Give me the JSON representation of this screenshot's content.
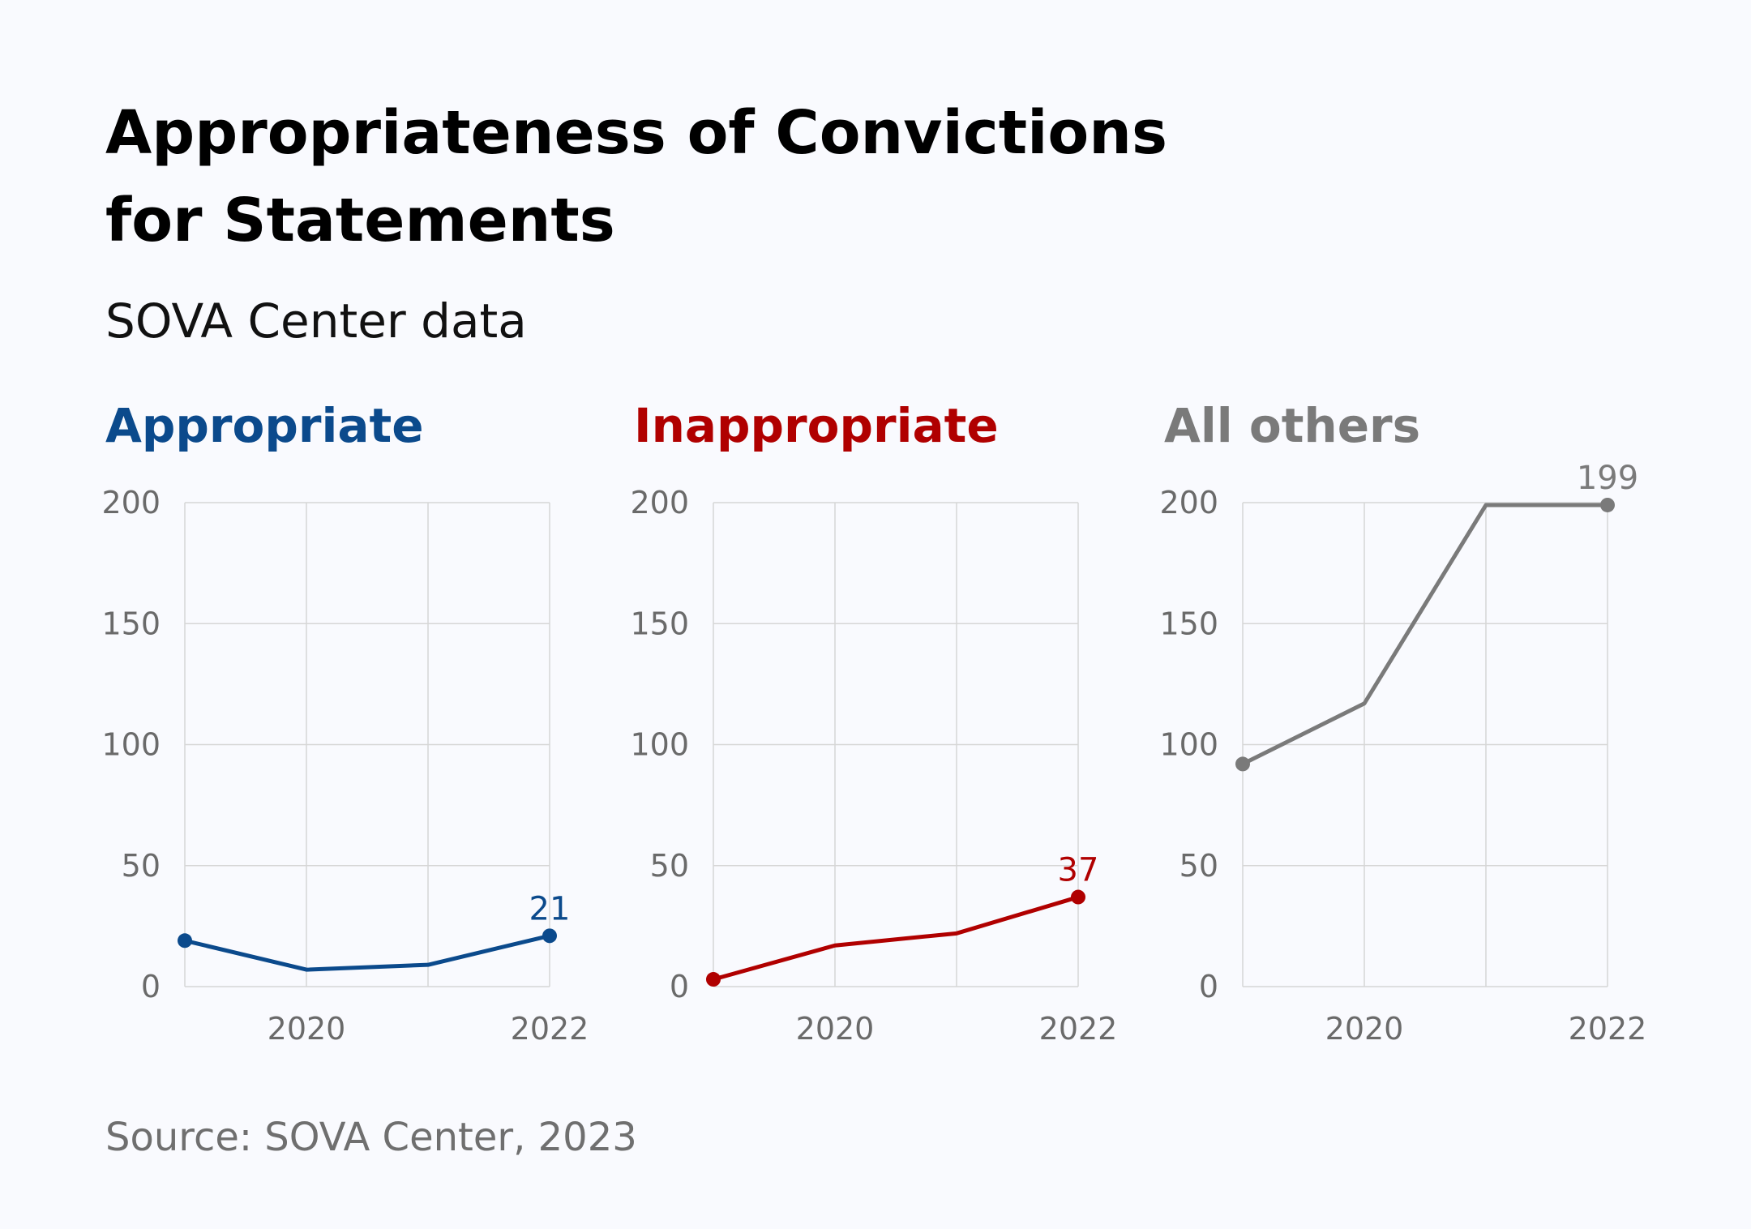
{
  "header": {
    "title_line1": "Appropriateness of Convictions",
    "title_line2": "for Statements",
    "subtitle": "SOVA Center data"
  },
  "footer": {
    "source": "Source: SOVA Center, 2023"
  },
  "chart_data": [
    {
      "type": "line",
      "title": "Appropriate",
      "color": "#0b4a8c",
      "x": [
        2019,
        2020,
        2021,
        2022
      ],
      "values": [
        19,
        7,
        9,
        21
      ],
      "x_tick_labels": [
        "2020",
        "2022"
      ],
      "y_ticks": [
        "0",
        "50",
        "100",
        "150",
        "200"
      ],
      "ylim": [
        0,
        200
      ],
      "labeled_point": "21"
    },
    {
      "type": "line",
      "title": "Inappropriate",
      "color": "#b00000",
      "x": [
        2019,
        2020,
        2021,
        2022
      ],
      "values": [
        3,
        17,
        22,
        37
      ],
      "x_tick_labels": [
        "2020",
        "2022"
      ],
      "y_ticks": [
        "0",
        "50",
        "100",
        "150",
        "200"
      ],
      "ylim": [
        0,
        200
      ],
      "labeled_point": "37"
    },
    {
      "type": "line",
      "title": "All others",
      "color": "#7a7a7a",
      "x": [
        2019,
        2020,
        2021,
        2022
      ],
      "values": [
        92,
        117,
        199,
        199
      ],
      "x_tick_labels": [
        "2020",
        "2022"
      ],
      "y_ticks": [
        "0",
        "50",
        "100",
        "150",
        "200"
      ],
      "ylim": [
        0,
        200
      ],
      "labeled_point": "199"
    }
  ]
}
